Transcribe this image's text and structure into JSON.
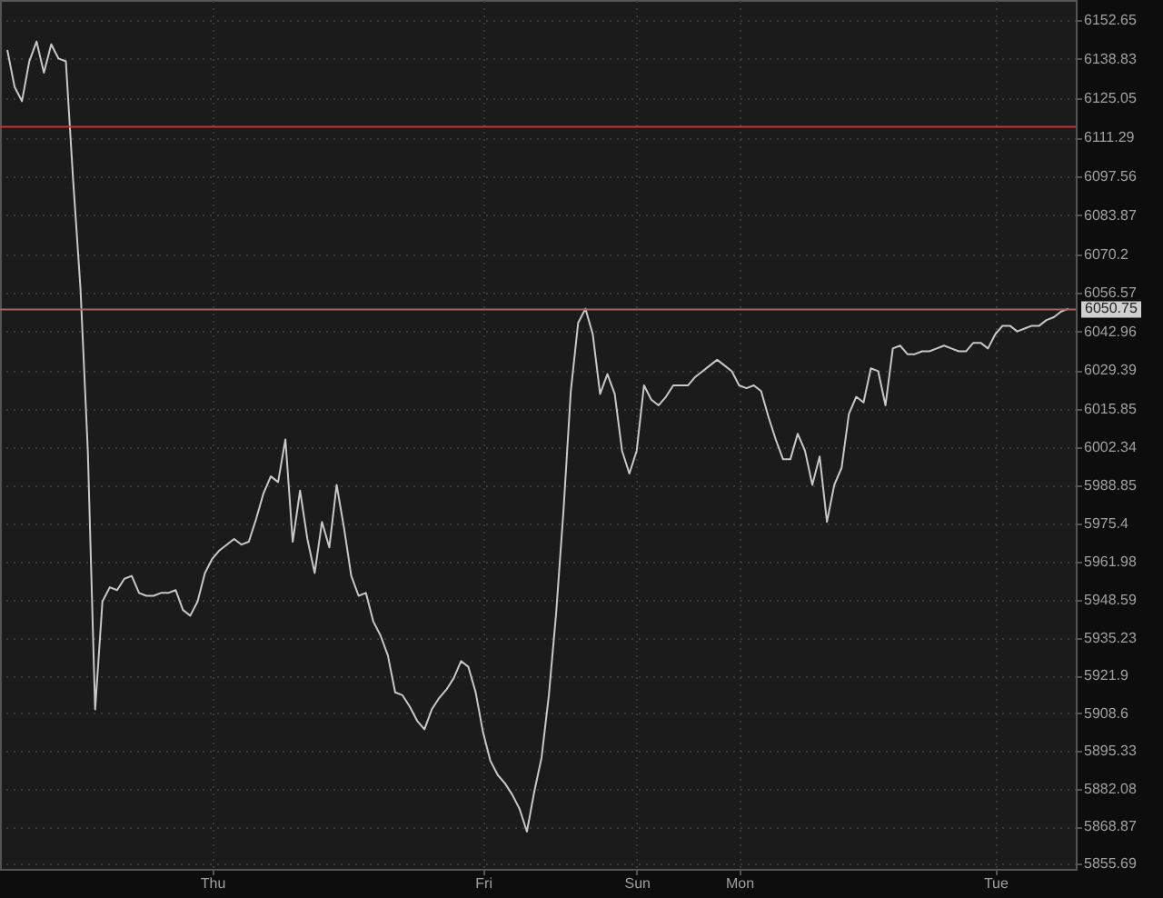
{
  "chart_data": {
    "type": "line",
    "categories": [
      null,
      null,
      null,
      null,
      null,
      null,
      null,
      null,
      null,
      null,
      null,
      null,
      null,
      null,
      null,
      null,
      null,
      null,
      null,
      null,
      null,
      null,
      null,
      null,
      null,
      null,
      null,
      null,
      "Thu",
      null,
      null,
      null,
      null,
      null,
      null,
      null,
      null,
      null,
      null,
      null,
      null,
      null,
      null,
      null,
      null,
      null,
      null,
      null,
      null,
      null,
      null,
      null,
      null,
      null,
      null,
      null,
      null,
      null,
      null,
      null,
      null,
      null,
      null,
      null,
      null,
      "Fri",
      null,
      null,
      null,
      null,
      null,
      null,
      null,
      null,
      null,
      null,
      null,
      null,
      null,
      null,
      null,
      null,
      null,
      null,
      null,
      null,
      "Sun",
      null,
      null,
      null,
      null,
      null,
      null,
      null,
      null,
      null,
      null,
      null,
      null,
      null,
      "Mon",
      null,
      null,
      null,
      null,
      null,
      null,
      null,
      null,
      null,
      null,
      null,
      null,
      null,
      null,
      null,
      null,
      null,
      null,
      null,
      null,
      null,
      null,
      null,
      null,
      null,
      null,
      null,
      null,
      null,
      null,
      null,
      null,
      null,
      null,
      "Tue",
      null,
      null,
      null,
      null,
      null,
      null,
      null,
      null,
      null,
      null
    ],
    "series": [
      {
        "color": "#c8c8c8",
        "values": [
          6142,
          6129,
          6124,
          6138,
          6145,
          6134,
          6144,
          6139,
          6138,
          6096,
          6058,
          6001,
          5910,
          5948,
          5953,
          5952,
          5956,
          5957,
          5951,
          5950,
          5950,
          5951,
          5951,
          5952,
          5945,
          5943,
          5948,
          5958,
          5963,
          5966,
          5968,
          5970,
          5968,
          5969,
          5977,
          5986,
          5992,
          5990,
          6005,
          5969,
          5987,
          5970,
          5958,
          5976,
          5967,
          5989,
          5974,
          5957,
          5950,
          5951,
          5941,
          5936,
          5929,
          5916,
          5915,
          5911,
          5906,
          5903,
          5910,
          5914,
          5917,
          5921,
          5927,
          5925,
          5916,
          5902,
          5892,
          5887,
          5884,
          5880,
          5875,
          5867,
          5881,
          5893,
          5915,
          5944,
          5980,
          6022,
          6046,
          6051,
          6042,
          6021,
          6028,
          6021,
          6001,
          5993,
          6001,
          6024,
          6019,
          6017,
          6020,
          6024,
          6024,
          6024,
          6027,
          6029,
          6031,
          6033,
          6031,
          6029,
          6024,
          6023,
          6024,
          6022,
          6013,
          6005,
          5998,
          5998,
          6007,
          6001,
          5989,
          5999,
          5976,
          5989,
          5995,
          6014,
          6020,
          6018,
          6030,
          6029,
          6017,
          6037,
          6038,
          6035,
          6035,
          6036,
          6036,
          6037,
          6038,
          6037,
          6036,
          6036,
          6039,
          6039,
          6037,
          6042,
          6045,
          6045,
          6043,
          6044,
          6045,
          6045,
          6047,
          6048,
          6050,
          6051
        ]
      }
    ],
    "ylim": [
      5853.9,
      6159.6
    ],
    "yticks": [
      6152.65,
      6138.83,
      6125.05,
      6111.29,
      6097.56,
      6083.87,
      6070.2,
      6056.57,
      6042.96,
      6029.39,
      6015.85,
      6002.34,
      5988.85,
      5975.4,
      5961.98,
      5948.59,
      5935.23,
      5921.9,
      5908.6,
      5895.33,
      5882.08,
      5868.87,
      5855.69
    ],
    "grid": true,
    "ref_lines": [
      {
        "axis": "y",
        "value": 6115,
        "color": "#d0302c"
      },
      {
        "axis": "y",
        "value": 6050.75,
        "label": "6050.75",
        "color": "#a86060"
      }
    ]
  }
}
